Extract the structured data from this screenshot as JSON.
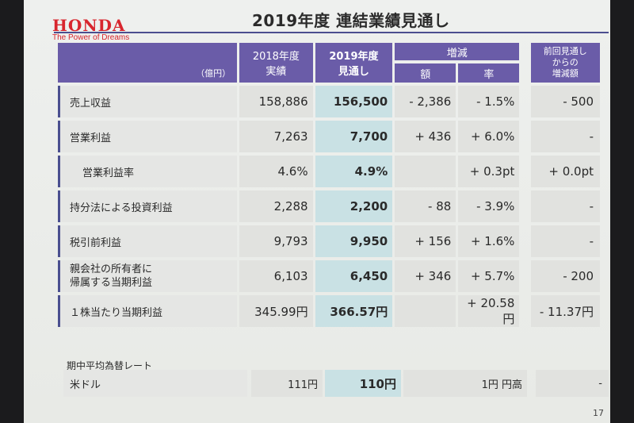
{
  "slide": {
    "brand": "HONDA",
    "tagline": "The Power of Dreams",
    "title": "2019年度  連結業績見通し",
    "page_number": "17"
  },
  "table": {
    "unit": "（億円）",
    "headers": {
      "col_2018": [
        "2018年度",
        "実績"
      ],
      "col_2019": [
        "2019年度",
        "見通し"
      ],
      "change": "増減",
      "change_amount": "額",
      "change_rate": "率",
      "prev": [
        "前回見通し",
        "からの",
        "増減額"
      ]
    },
    "rows": [
      {
        "label": "売上収益",
        "indent": false,
        "fy2018": "158,886",
        "fy2019": "156,500",
        "amount": "- 2,386",
        "rate": "- 1.5%",
        "prev": "- 500"
      },
      {
        "label": "営業利益",
        "indent": false,
        "fy2018": "7,263",
        "fy2019": "7,700",
        "amount": "+ 436",
        "rate": "+ 6.0%",
        "prev": "-"
      },
      {
        "label": "営業利益率",
        "indent": true,
        "fy2018": "4.6%",
        "fy2019": "4.9%",
        "amount": "",
        "rate": "+ 0.3pt",
        "prev": "+ 0.0pt"
      },
      {
        "label": "持分法による投資利益",
        "indent": false,
        "fy2018": "2,288",
        "fy2019": "2,200",
        "amount": "- 88",
        "rate": "- 3.9%",
        "prev": "-"
      },
      {
        "label": "税引前利益",
        "indent": false,
        "fy2018": "9,793",
        "fy2019": "9,950",
        "amount": "+ 156",
        "rate": "+ 1.6%",
        "prev": "-"
      },
      {
        "label": "親会社の所有者に\n帰属する当期利益",
        "indent": false,
        "fy2018": "6,103",
        "fy2019": "6,450",
        "amount": "+ 346",
        "rate": "+ 5.7%",
        "prev": "- 200"
      },
      {
        "label": "１株当たり当期利益",
        "indent": false,
        "fy2018": "345.99円",
        "fy2019": "366.57円",
        "amount": "",
        "rate": "+ 20.58円",
        "prev": "- 11.37円"
      }
    ]
  },
  "fx": {
    "title": "期中平均為替レート",
    "label": "米ドル",
    "fy2018": "111円",
    "fy2019": "110円",
    "change": "1円 円高",
    "prev": "-"
  }
}
